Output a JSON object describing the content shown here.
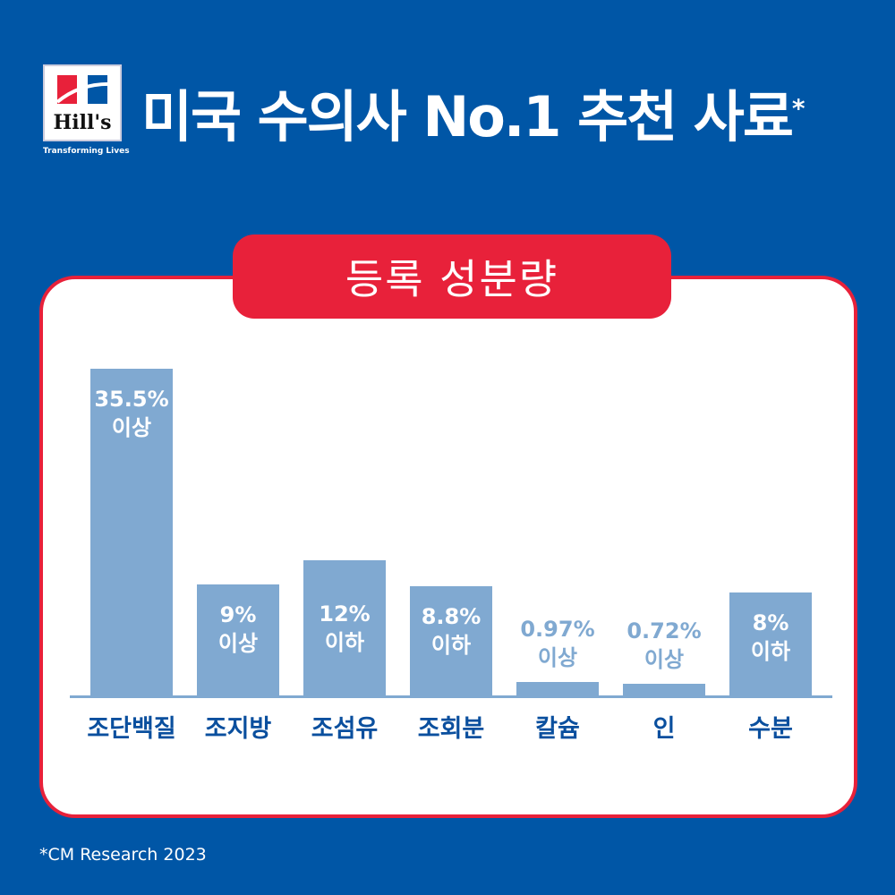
{
  "brand": {
    "logo_text": "Hill's",
    "tagline": "Transforming Lives"
  },
  "header": {
    "title": "미국 수의사 No.1 추천 사료",
    "asterisk": "*"
  },
  "colors": {
    "background": "#0056a6",
    "accent": "#e8213a",
    "bar": "#80a9d1",
    "category_text": "#0a4f9e"
  },
  "chart_data": {
    "type": "bar",
    "title": "등록 성분량",
    "categories": [
      "조단백질",
      "조지방",
      "조섬유",
      "조회분",
      "칼슘",
      "인",
      "수분"
    ],
    "values": [
      35.5,
      9,
      12,
      8.8,
      0.97,
      0.72,
      8
    ],
    "labels": [
      [
        "35.5%",
        "이상"
      ],
      [
        "9%",
        "이상"
      ],
      [
        "12%",
        "이하"
      ],
      [
        "8.8%",
        "이하"
      ],
      [
        "0.97%",
        "이상"
      ],
      [
        "0.72%",
        "이상"
      ],
      [
        "8%",
        "이하"
      ]
    ],
    "unit": "%",
    "grid": false
  },
  "footnote": "*CM Research 2023"
}
